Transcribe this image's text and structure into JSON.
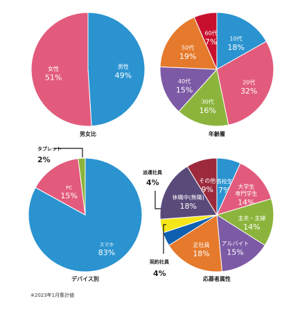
{
  "chart_data": [
    {
      "type": "pie",
      "title": "男女比",
      "slices": [
        {
          "name": "男性",
          "value": 49,
          "label": "49%",
          "color": "#2a93d0"
        },
        {
          "name": "女性",
          "value": 51,
          "label": "51%",
          "color": "#e25b7c"
        }
      ]
    },
    {
      "type": "pie",
      "title": "年齢層",
      "slices": [
        {
          "name": "10代",
          "value": 18,
          "label": "18%",
          "color": "#2a93d0"
        },
        {
          "name": "20代",
          "value": 32,
          "label": "32%",
          "color": "#e25b7c"
        },
        {
          "name": "30代",
          "value": 16,
          "label": "16%",
          "color": "#8cb43c"
        },
        {
          "name": "40代",
          "value": 15,
          "label": "15%",
          "color": "#7d5aa5"
        },
        {
          "name": "50代",
          "value": 19,
          "label": "19%",
          "color": "#e57a2c"
        },
        {
          "name": "60代",
          "value": 7,
          "label": "7%",
          "color": "#c8102e"
        }
      ]
    },
    {
      "type": "pie",
      "title": "デバイス別",
      "slices": [
        {
          "name": "スマホ",
          "value": 83,
          "label": "83%",
          "color": "#2a93d0"
        },
        {
          "name": "PC",
          "value": 15,
          "label": "15%",
          "color": "#e25b7c"
        },
        {
          "name": "タブレット",
          "value": 2,
          "label": "2%",
          "color": "#8cb43c"
        }
      ]
    },
    {
      "type": "pie",
      "title": "応募者属性",
      "slices": [
        {
          "name": "高校生",
          "value": 7,
          "label": "7%",
          "color": "#2a93d0"
        },
        {
          "name": "大学生\n専門学生",
          "value": 14,
          "label": "14%",
          "color": "#e25b7c"
        },
        {
          "name": "主夫・主婦",
          "value": 14,
          "label": "14%",
          "color": "#8cb43c"
        },
        {
          "name": "アルバイト",
          "value": 15,
          "label": "15%",
          "color": "#7d5aa5"
        },
        {
          "name": "正社員",
          "value": 18,
          "label": "18%",
          "color": "#e57a2c"
        },
        {
          "name": "契約社員",
          "value": 4,
          "label": "4%",
          "color": "#1060b0"
        },
        {
          "name": "派遣社員",
          "value": 4,
          "label": "4%",
          "color": "#f5e61a"
        },
        {
          "name": "休職中(無職)",
          "value": 18,
          "label": "18%",
          "color": "#5a4a7a"
        },
        {
          "name": "その他",
          "value": 9,
          "label": "9%",
          "color": "#9c2a3c"
        }
      ]
    }
  ],
  "footnote": "※2023年1月集計値"
}
